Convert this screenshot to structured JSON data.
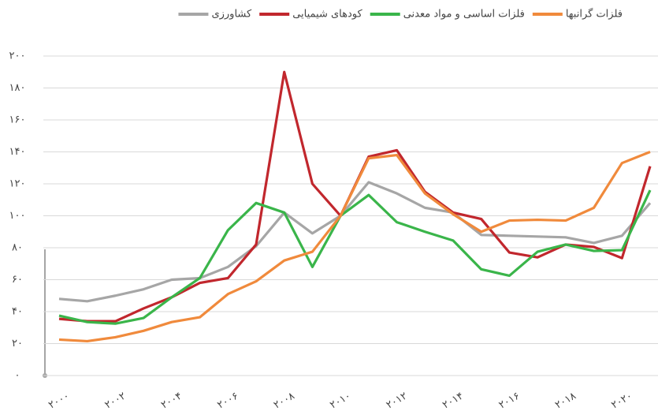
{
  "chart_data": {
    "type": "line",
    "x": [
      2000,
      2001,
      2002,
      2003,
      2004,
      2005,
      2006,
      2007,
      2008,
      2009,
      2010,
      2011,
      2012,
      2013,
      2014,
      2015,
      2016,
      2017,
      2018,
      2019,
      2020,
      2021
    ],
    "series": [
      {
        "name": "کشاورزی",
        "color": "#a6a6a6",
        "values": [
          48,
          46.5,
          50,
          54,
          60,
          61,
          68,
          81,
          102,
          89,
          100,
          121,
          114,
          105,
          102,
          88,
          87.5,
          87,
          86.5,
          83,
          87.5,
          108
        ]
      },
      {
        "name": "کودهای شیمیایی",
        "color": "#c1272d",
        "values": [
          35.5,
          34,
          34,
          42,
          49,
          58,
          61,
          82,
          190,
          120,
          100,
          137,
          141,
          115,
          102,
          98,
          77,
          74,
          82,
          80.5,
          73.5,
          131
        ]
      },
      {
        "name": "فلزات اساسی و مواد معدنی",
        "color": "#3ab54a",
        "values": [
          37.5,
          33.5,
          32.5,
          36,
          49,
          61,
          91,
          108,
          102,
          68,
          100,
          113,
          96,
          90,
          84.5,
          66.5,
          62.5,
          77.5,
          82,
          78,
          78.5,
          116
        ]
      },
      {
        "name": "فلزات گرانبها",
        "color": "#f08a3c",
        "values": [
          22.5,
          21.5,
          24,
          28,
          33.5,
          36.5,
          51,
          59,
          72,
          77.5,
          100,
          136,
          138,
          114,
          101,
          90,
          97,
          97.5,
          97,
          105,
          133,
          140
        ]
      }
    ],
    "xlim": [
      1999.44,
      2021.28
    ],
    "xticks": [
      {
        "value": 2000,
        "label": "۲۰۰۰"
      },
      {
        "value": 2002,
        "label": "۲۰۰۲"
      },
      {
        "value": 2004,
        "label": "۲۰۰۴"
      },
      {
        "value": 2006,
        "label": "۲۰۰۶"
      },
      {
        "value": 2008,
        "label": "۲۰۰۸"
      },
      {
        "value": 2010,
        "label": "۲۰۱۰"
      },
      {
        "value": 2012,
        "label": "۲۰۱۲"
      },
      {
        "value": 2014,
        "label": "۲۰۱۴"
      },
      {
        "value": 2016,
        "label": "۲۰۱۶"
      },
      {
        "value": 2018,
        "label": "۲۰۱۸"
      },
      {
        "value": 2020,
        "label": "۲۰۲۰"
      }
    ],
    "ylim": [
      0,
      200
    ],
    "yticks": [
      {
        "value": 0,
        "label": "۰"
      },
      {
        "value": 20,
        "label": "۲۰"
      },
      {
        "value": 40,
        "label": "۴۰"
      },
      {
        "value": 60,
        "label": "۶۰"
      },
      {
        "value": 80,
        "label": "۸۰"
      },
      {
        "value": 100,
        "label": "۱۰۰"
      },
      {
        "value": 120,
        "label": "۱۲۰"
      },
      {
        "value": 140,
        "label": "۱۴۰"
      },
      {
        "value": 160,
        "label": "۱۶۰"
      },
      {
        "value": 180,
        "label": "۱۸۰"
      },
      {
        "value": 200,
        "label": "۲۰۰"
      }
    ],
    "grid": true
  }
}
